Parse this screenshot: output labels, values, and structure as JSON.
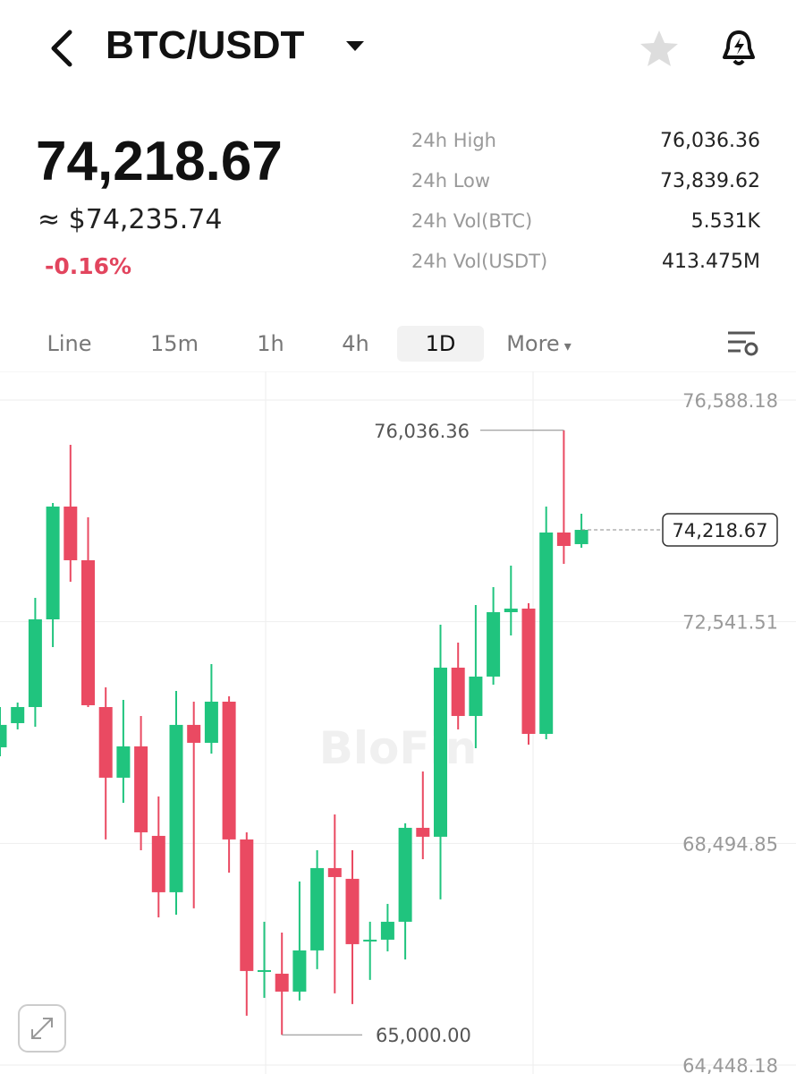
{
  "header": {
    "pair": "BTC/USDT"
  },
  "price": {
    "last": "74,218.67",
    "usd": "≈ $74,235.74",
    "change": "-0.16%"
  },
  "stats": [
    {
      "label": "24h High",
      "value": "76,036.36"
    },
    {
      "label": "24h Low",
      "value": "73,839.62"
    },
    {
      "label": "24h Vol(BTC)",
      "value": "5.531K"
    },
    {
      "label": "24h Vol(USDT)",
      "value": "413.475M"
    }
  ],
  "tabs": [
    "Line",
    "15m",
    "1h",
    "4h",
    "1D",
    "More"
  ],
  "selected_tab": "1D",
  "chart_data": {
    "type": "candlestick",
    "watermark": "BloFin",
    "up_color": "#20c47e",
    "down_color": "#ea4a62",
    "open": [
      70249,
      70690,
      70984,
      72585,
      74644,
      73664,
      70984,
      69694,
      70266,
      68632,
      67603,
      70658,
      70331,
      71082,
      68567,
      66149,
      66116,
      65789,
      66541,
      68044,
      67848,
      66704,
      66737,
      67064,
      68779,
      68616,
      71703,
      70821,
      71540,
      72716,
      72781,
      70494,
      74170,
      73958
    ],
    "high": [
      70984,
      71066,
      72978,
      74709,
      75771,
      74448,
      71344,
      71115,
      70821,
      69351,
      71278,
      71082,
      71769,
      71180,
      68697,
      67064,
      66867,
      67799,
      68370,
      69024,
      68370,
      67064,
      67390,
      68861,
      69808,
      72487,
      72161,
      72847,
      73174,
      73566,
      72879,
      74644,
      76036.36,
      74513
    ],
    "low": [
      70086,
      70576,
      70625,
      72079,
      73272,
      70984,
      68567,
      69236,
      68370,
      67145,
      67194,
      67309,
      70135,
      67962,
      65348,
      65675,
      65000,
      65626,
      66198,
      65757,
      65561,
      66002,
      66524,
      66377,
      68207,
      67472,
      70576,
      70233,
      71393,
      72291,
      70298,
      70396,
      73598,
      73892
    ],
    "close": [
      70658,
      70984,
      72585,
      74644,
      73664,
      71017,
      69694,
      70266,
      68697,
      67603,
      70658,
      70331,
      71082,
      68567,
      66165,
      66181,
      65789,
      66541,
      68044,
      67880,
      66655,
      66737,
      67064,
      68779,
      68616,
      71703,
      70821,
      71540,
      72716,
      72781,
      70494,
      74170,
      73925,
      74218.67
    ],
    "ylim": [
      64448.18,
      76588.18
    ],
    "yticks": [
      {
        "value": 76588.18,
        "label": "76,588.18"
      },
      {
        "value": 72541.51,
        "label": "72,541.51"
      },
      {
        "value": 68494.85,
        "label": "68,494.85"
      },
      {
        "value": 64448.18,
        "label": "64,448.18"
      }
    ],
    "grid": true,
    "annotations": [
      {
        "value": 76036.36,
        "label": "76,036.36"
      },
      {
        "value": 65000,
        "label": "65,000.00"
      }
    ],
    "last_price": {
      "value": 74218.67,
      "label": "74,218.67"
    }
  }
}
